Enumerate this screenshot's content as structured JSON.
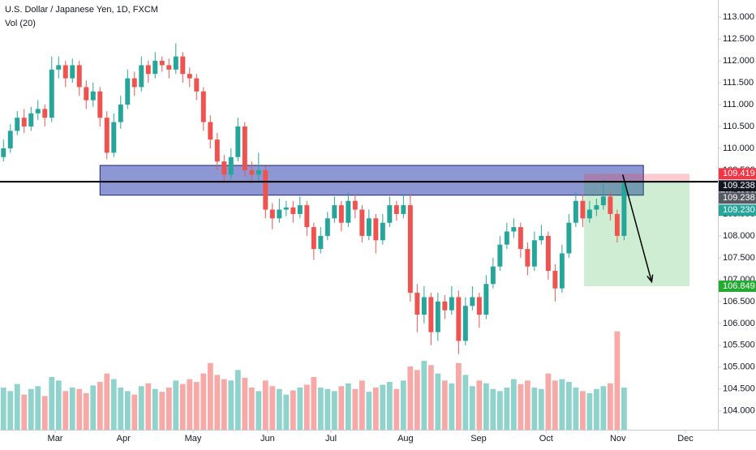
{
  "chart_data": {
    "type": "candlestick",
    "title": "U.S. Dollar / Japanese Yen, 1D, FXCM",
    "volume_title": "Vol (20)",
    "up_color": "#26a69a",
    "down_color": "#ef5350",
    "volume_up_color": "#8fd3cc",
    "volume_down_color": "#f6a9a7",
    "candles": [
      [
        109.8,
        110.2,
        109.7,
        110.0
      ],
      [
        110.0,
        110.55,
        109.9,
        110.4
      ],
      [
        110.4,
        110.85,
        110.3,
        110.7
      ],
      [
        110.7,
        110.9,
        110.35,
        110.5
      ],
      [
        110.5,
        110.95,
        110.4,
        110.8
      ],
      [
        110.8,
        111.1,
        110.65,
        110.9
      ],
      [
        110.9,
        111.0,
        110.5,
        110.7
      ],
      [
        110.7,
        112.1,
        110.6,
        111.8
      ],
      [
        111.8,
        112.1,
        111.6,
        111.9
      ],
      [
        111.9,
        112.0,
        111.4,
        111.6
      ],
      [
        111.6,
        112.05,
        111.5,
        111.9
      ],
      [
        111.9,
        112.0,
        111.2,
        111.4
      ],
      [
        111.4,
        111.55,
        110.9,
        111.1
      ],
      [
        111.1,
        111.5,
        110.95,
        111.3
      ],
      [
        111.3,
        111.4,
        110.5,
        110.7
      ],
      [
        110.7,
        110.85,
        109.75,
        109.9
      ],
      [
        109.9,
        110.8,
        109.8,
        110.6
      ],
      [
        110.6,
        111.2,
        110.45,
        111.0
      ],
      [
        111.0,
        111.8,
        110.9,
        111.6
      ],
      [
        111.6,
        111.75,
        111.2,
        111.4
      ],
      [
        111.4,
        112.1,
        111.3,
        111.9
      ],
      [
        111.9,
        112.0,
        111.5,
        111.7
      ],
      [
        111.7,
        112.2,
        111.6,
        112.0
      ],
      [
        112.0,
        112.1,
        111.75,
        111.9
      ],
      [
        111.9,
        112.05,
        111.6,
        111.8
      ],
      [
        111.8,
        112.4,
        111.7,
        112.1
      ],
      [
        112.1,
        112.2,
        111.5,
        111.7
      ],
      [
        111.7,
        111.85,
        111.4,
        111.6
      ],
      [
        111.6,
        111.7,
        111.1,
        111.3
      ],
      [
        111.3,
        111.4,
        110.4,
        110.6
      ],
      [
        110.6,
        110.75,
        110.0,
        110.2
      ],
      [
        110.2,
        110.35,
        109.5,
        109.7
      ],
      [
        109.7,
        109.85,
        109.2,
        109.4
      ],
      [
        109.4,
        110.0,
        109.3,
        109.8
      ],
      [
        109.8,
        110.7,
        109.7,
        110.5
      ],
      [
        110.5,
        110.6,
        109.35,
        109.5
      ],
      [
        109.5,
        109.7,
        109.2,
        109.4
      ],
      [
        109.4,
        109.9,
        109.25,
        109.5
      ],
      [
        109.5,
        109.6,
        108.4,
        108.6
      ],
      [
        108.6,
        108.75,
        108.15,
        108.4
      ],
      [
        108.4,
        108.85,
        108.3,
        108.6
      ],
      [
        108.6,
        108.8,
        108.45,
        108.65
      ],
      [
        108.65,
        108.8,
        108.3,
        108.5
      ],
      [
        108.5,
        108.9,
        108.4,
        108.7
      ],
      [
        108.7,
        108.8,
        108.0,
        108.2
      ],
      [
        108.2,
        108.3,
        107.45,
        107.7
      ],
      [
        107.7,
        108.2,
        107.6,
        108.0
      ],
      [
        108.0,
        108.55,
        107.9,
        108.4
      ],
      [
        108.4,
        108.9,
        108.3,
        108.7
      ],
      [
        108.7,
        108.8,
        108.1,
        108.3
      ],
      [
        108.3,
        109.0,
        108.2,
        108.8
      ],
      [
        108.8,
        108.95,
        108.4,
        108.6
      ],
      [
        108.6,
        108.7,
        107.85,
        108.0
      ],
      [
        108.0,
        108.6,
        107.9,
        108.4
      ],
      [
        108.4,
        108.5,
        107.6,
        107.9
      ],
      [
        107.9,
        108.5,
        107.8,
        108.3
      ],
      [
        108.3,
        108.9,
        108.2,
        108.7
      ],
      [
        108.7,
        108.8,
        108.35,
        108.5
      ],
      [
        108.5,
        108.95,
        108.4,
        108.7
      ],
      [
        108.7,
        108.95,
        106.5,
        106.7
      ],
      [
        106.7,
        106.9,
        105.8,
        106.2
      ],
      [
        106.2,
        106.85,
        106.0,
        106.6
      ],
      [
        106.6,
        106.7,
        105.5,
        105.8
      ],
      [
        105.8,
        106.7,
        105.6,
        106.5
      ],
      [
        106.5,
        106.65,
        106.1,
        106.3
      ],
      [
        106.3,
        106.85,
        106.2,
        106.6
      ],
      [
        106.6,
        106.75,
        105.3,
        105.6
      ],
      [
        105.6,
        106.6,
        105.5,
        106.4
      ],
      [
        106.4,
        106.85,
        106.3,
        106.6
      ],
      [
        106.6,
        106.7,
        105.9,
        106.2
      ],
      [
        106.2,
        107.1,
        106.1,
        106.9
      ],
      [
        106.9,
        107.5,
        106.8,
        107.3
      ],
      [
        107.3,
        108.0,
        107.2,
        107.8
      ],
      [
        107.8,
        108.3,
        107.7,
        108.1
      ],
      [
        108.1,
        108.4,
        107.95,
        108.2
      ],
      [
        108.2,
        108.3,
        107.5,
        107.7
      ],
      [
        107.7,
        107.85,
        107.1,
        107.3
      ],
      [
        107.3,
        108.1,
        107.2,
        107.9
      ],
      [
        107.9,
        108.25,
        107.8,
        108.0
      ],
      [
        108.0,
        108.1,
        107.0,
        107.2
      ],
      [
        107.2,
        107.35,
        106.5,
        106.8
      ],
      [
        106.8,
        107.8,
        106.7,
        107.6
      ],
      [
        107.6,
        108.5,
        107.5,
        108.3
      ],
      [
        108.3,
        109.0,
        108.2,
        108.8
      ],
      [
        108.8,
        108.95,
        108.2,
        108.4
      ],
      [
        108.4,
        108.8,
        108.3,
        108.6
      ],
      [
        108.6,
        108.85,
        108.45,
        108.7
      ],
      [
        108.7,
        109.3,
        108.6,
        108.9
      ],
      [
        108.9,
        109.0,
        108.35,
        108.5
      ],
      [
        108.5,
        108.6,
        107.85,
        108.0
      ],
      [
        108.0,
        109.35,
        107.9,
        109.23
      ]
    ],
    "volume": [
      60,
      55,
      65,
      50,
      58,
      62,
      48,
      75,
      70,
      55,
      60,
      58,
      52,
      63,
      68,
      80,
      72,
      60,
      55,
      50,
      62,
      66,
      58,
      54,
      60,
      70,
      65,
      72,
      68,
      80,
      95,
      78,
      72,
      70,
      85,
      74,
      60,
      55,
      70,
      62,
      58,
      50,
      56,
      60,
      64,
      75,
      60,
      58,
      55,
      62,
      66,
      58,
      70,
      54,
      60,
      64,
      68,
      58,
      70,
      90,
      85,
      98,
      92,
      80,
      70,
      66,
      95,
      78,
      62,
      70,
      66,
      58,
      55,
      60,
      72,
      65,
      70,
      60,
      58,
      80,
      70,
      72,
      68,
      60,
      55,
      52,
      58,
      62,
      66,
      140,
      60
    ],
    "xlim": [
      -0.5,
      103.6
    ],
    "ylim": [
      103.57,
      113.39
    ],
    "vlim": [
      0,
      150
    ],
    "xticks": [
      {
        "value": 7.5,
        "label": "Mar"
      },
      {
        "value": 17.4,
        "label": "Apr"
      },
      {
        "value": 27.5,
        "label": "May"
      },
      {
        "value": 38.3,
        "label": "Jun"
      },
      {
        "value": 47.5,
        "label": "Jul"
      },
      {
        "value": 58.3,
        "label": "Aug"
      },
      {
        "value": 68.9,
        "label": "Sep"
      },
      {
        "value": 78.7,
        "label": "Oct"
      },
      {
        "value": 89.1,
        "label": "Nov"
      },
      {
        "value": 98.9,
        "label": "Dec"
      }
    ],
    "yticks": [
      {
        "value": 104,
        "label": "104.000"
      },
      {
        "value": 104.5,
        "label": "104.500"
      },
      {
        "value": 105,
        "label": "105.000"
      },
      {
        "value": 105.5,
        "label": "105.500"
      },
      {
        "value": 106,
        "label": "106.000"
      },
      {
        "value": 106.5,
        "label": "106.500"
      },
      {
        "value": 107,
        "label": "107.000"
      },
      {
        "value": 107.5,
        "label": "107.500"
      },
      {
        "value": 108,
        "label": "108.000"
      },
      {
        "value": 108.5,
        "label": "108.500"
      },
      {
        "value": 109,
        "label": "109.000"
      },
      {
        "value": 109.5,
        "label": "109.500"
      },
      {
        "value": 110,
        "label": "110.000"
      },
      {
        "value": 110.5,
        "label": "110.500"
      },
      {
        "value": 111,
        "label": "111.000"
      },
      {
        "value": 111.5,
        "label": "111.500"
      },
      {
        "value": 112,
        "label": "112.000"
      },
      {
        "value": 112.5,
        "label": "112.500"
      },
      {
        "value": 113,
        "label": "113.000"
      }
    ],
    "zone": {
      "low": 108.93,
      "high": 109.61,
      "color": "#3f51b5"
    },
    "price_tags": [
      {
        "value": 109.419,
        "label": "109.419",
        "color": "#f23645"
      },
      {
        "value": 109.238,
        "label": "109.238",
        "color": "#131722"
      },
      {
        "value": 109.238,
        "label": "109.238",
        "color": "#555a63"
      },
      {
        "value": 109.23,
        "label": "109.230",
        "color": "#26a69a"
      },
      {
        "value": 106.849,
        "label": "106.849",
        "color": "#22ab30"
      }
    ]
  }
}
